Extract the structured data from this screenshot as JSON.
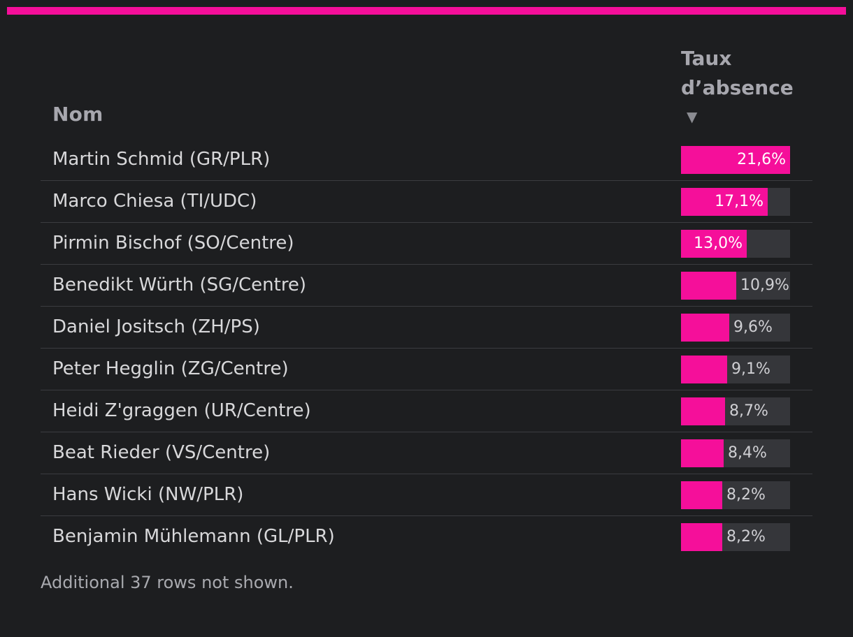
{
  "accent_color": "#f50f9a",
  "table": {
    "columns": {
      "name": "Nom",
      "rate": "Taux d’absence",
      "sort_indicator": "▼"
    },
    "rows": [
      {
        "name": "Martin Schmid (GR/PLR)",
        "rate_label": "21,6%",
        "rate": 21.6
      },
      {
        "name": "Marco Chiesa (TI/UDC)",
        "rate_label": "17,1%",
        "rate": 17.1
      },
      {
        "name": "Pirmin Bischof (SO/Centre)",
        "rate_label": "13,0%",
        "rate": 13.0
      },
      {
        "name": "Benedikt Würth (SG/Centre)",
        "rate_label": "10,9%",
        "rate": 10.9
      },
      {
        "name": "Daniel Jositsch (ZH/PS)",
        "rate_label": "9,6%",
        "rate": 9.6
      },
      {
        "name": "Peter Hegglin (ZG/Centre)",
        "rate_label": "9,1%",
        "rate": 9.1
      },
      {
        "name": "Heidi Z'graggen (UR/Centre)",
        "rate_label": "8,7%",
        "rate": 8.7
      },
      {
        "name": "Beat Rieder (VS/Centre)",
        "rate_label": "8,4%",
        "rate": 8.4
      },
      {
        "name": "Hans Wicki (NW/PLR)",
        "rate_label": "8,2%",
        "rate": 8.2
      },
      {
        "name": "Benjamin Mühlemann (GL/PLR)",
        "rate_label": "8,2%",
        "rate": 8.2
      }
    ]
  },
  "footnote": "Additional 37 rows not shown."
}
